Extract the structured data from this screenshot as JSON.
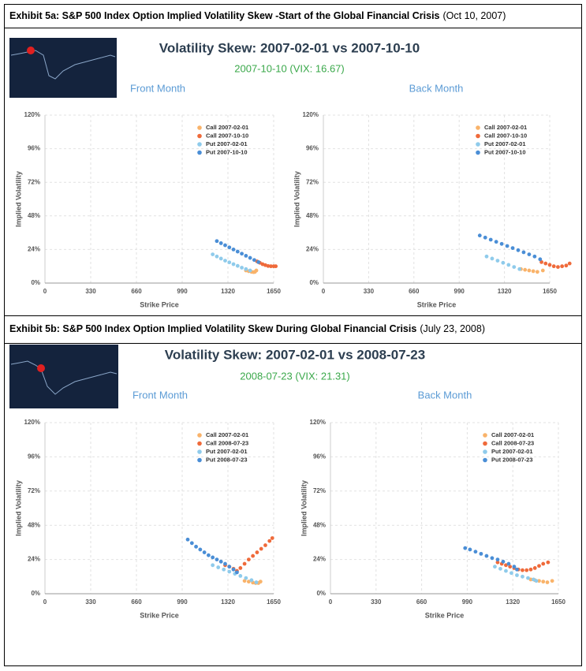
{
  "exhibits": [
    {
      "title": "Exhibit 5a: S&P 500 Index Option Implied Volatility Skew -Start of the Global Financial Crisis",
      "date": "(Oct 10, 2007)",
      "heading": "Volatility Skew: 2007-02-01 vs 2007-10-10",
      "subheading": "2007-10-10 (VIX: 16.67)"
    },
    {
      "title": "Exhibit 5b: S&P 500 Index Option Implied Volatility Skew During Global Financial Crisis",
      "date": "(July 23, 2008)",
      "heading": "Volatility Skew: 2007-02-01 vs 2008-07-23",
      "subheading": "2008-07-23 (VIX: 21.31)"
    }
  ],
  "chart_data": [
    {
      "type": "scatter",
      "title": "Front Month",
      "x_label": "Strike Price",
      "y_label": "Implied Volatility",
      "xlim": [
        0,
        1650
      ],
      "xticks": [
        0,
        330,
        660,
        990,
        1320,
        1650
      ],
      "ylim": [
        0,
        120
      ],
      "yticks": [
        {
          "value": 0,
          "label": "0%"
        },
        {
          "value": 24,
          "label": "24%"
        },
        {
          "value": 48,
          "label": "48%"
        },
        {
          "value": 72,
          "label": "72%"
        },
        {
          "value": 96,
          "label": "96%"
        },
        {
          "value": 120,
          "label": "120%"
        }
      ],
      "grid": true,
      "series": [
        {
          "name": "Call 2007-02-01",
          "color": "#f9b36a",
          "x": [
            1450,
            1470,
            1490,
            1505,
            1515,
            1525
          ],
          "values": [
            9,
            8.5,
            8,
            7.8,
            8,
            9
          ]
        },
        {
          "name": "Call 2007-10-10",
          "color": "#ef6a3a",
          "x": [
            1530,
            1550,
            1570,
            1590,
            1610,
            1630,
            1650,
            1665
          ],
          "values": [
            15.5,
            14.5,
            13.5,
            12.8,
            12.2,
            12,
            12,
            12
          ]
        },
        {
          "name": "Put 2007-02-01",
          "color": "#8fcbeb",
          "x": [
            1210,
            1240,
            1270,
            1300,
            1330,
            1360,
            1390,
            1420,
            1450,
            1480
          ],
          "values": [
            20.5,
            19,
            17.5,
            16,
            14.8,
            13.5,
            12.3,
            11,
            10,
            9
          ]
        },
        {
          "name": "Put 2007-10-10",
          "color": "#4a8ed6",
          "x": [
            1240,
            1270,
            1300,
            1330,
            1360,
            1390,
            1420,
            1450,
            1480,
            1510,
            1540
          ],
          "values": [
            30,
            28.5,
            27,
            25.5,
            24,
            22.5,
            21,
            19.5,
            18,
            16.5,
            15
          ]
        }
      ]
    },
    {
      "type": "scatter",
      "title": "Back Month",
      "x_label": "Strike Price",
      "y_label": "Implied Volatility",
      "xlim": [
        0,
        1650
      ],
      "xticks": [
        0,
        330,
        660,
        990,
        1320,
        1650
      ],
      "ylim": [
        0,
        120
      ],
      "yticks": [
        {
          "value": 0,
          "label": "0%"
        },
        {
          "value": 24,
          "label": "24%"
        },
        {
          "value": 48,
          "label": "48%"
        },
        {
          "value": 72,
          "label": "72%"
        },
        {
          "value": 96,
          "label": "96%"
        },
        {
          "value": 120,
          "label": "120%"
        }
      ],
      "grid": true,
      "series": [
        {
          "name": "Call 2007-02-01",
          "color": "#f9b36a",
          "x": [
            1440,
            1470,
            1500,
            1530,
            1560,
            1600
          ],
          "values": [
            10,
            9.5,
            9,
            8.5,
            8,
            9
          ]
        },
        {
          "name": "Call 2007-10-10",
          "color": "#ef6a3a",
          "x": [
            1590,
            1620,
            1650,
            1680,
            1710,
            1740,
            1770,
            1795
          ],
          "values": [
            15,
            14,
            13,
            12,
            11.5,
            12,
            12.5,
            14
          ]
        },
        {
          "name": "Put 2007-02-01",
          "color": "#8fcbeb",
          "x": [
            1190,
            1230,
            1270,
            1310,
            1350,
            1390,
            1430
          ],
          "values": [
            19,
            17.5,
            16,
            14.5,
            13,
            11.5,
            10
          ]
        },
        {
          "name": "Put 2007-10-10",
          "color": "#4a8ed6",
          "x": [
            1140,
            1180,
            1220,
            1260,
            1300,
            1340,
            1380,
            1420,
            1460,
            1500,
            1540,
            1580
          ],
          "values": [
            34,
            32.5,
            31,
            29.5,
            28,
            26.5,
            25,
            23.5,
            22,
            20.5,
            19,
            17
          ]
        }
      ]
    },
    {
      "type": "scatter",
      "title": "Front Month",
      "x_label": "Strike Price",
      "y_label": "Implied Volatility",
      "xlim": [
        0,
        1650
      ],
      "xticks": [
        0,
        330,
        660,
        990,
        1320,
        1650
      ],
      "ylim": [
        0,
        120
      ],
      "yticks": [
        {
          "value": 0,
          "label": "0%"
        },
        {
          "value": 24,
          "label": "24%"
        },
        {
          "value": 48,
          "label": "48%"
        },
        {
          "value": 72,
          "label": "72%"
        },
        {
          "value": 96,
          "label": "96%"
        },
        {
          "value": 120,
          "label": "120%"
        }
      ],
      "grid": true,
      "series": [
        {
          "name": "Call 2007-02-01",
          "color": "#f9b36a",
          "x": [
            1440,
            1470,
            1500,
            1520,
            1540,
            1555
          ],
          "values": [
            9,
            8.5,
            7.8,
            7.5,
            7.5,
            8.5
          ]
        },
        {
          "name": "Call 2008-07-23",
          "color": "#ef6a3a",
          "x": [
            1300,
            1330,
            1360,
            1385,
            1410,
            1440,
            1470,
            1500,
            1530,
            1560,
            1590,
            1620,
            1640
          ],
          "values": [
            20,
            19,
            17.5,
            16,
            18,
            21,
            24,
            26.5,
            29,
            31.5,
            34,
            37,
            39
          ]
        },
        {
          "name": "Put 2007-02-01",
          "color": "#8fcbeb",
          "x": [
            1210,
            1250,
            1290,
            1330,
            1370,
            1410,
            1450,
            1490,
            1525
          ],
          "values": [
            20,
            18.5,
            17,
            15.5,
            14,
            12.5,
            11,
            9.5,
            8
          ]
        },
        {
          "name": "Put 2008-07-23",
          "color": "#4a8ed6",
          "x": [
            1030,
            1060,
            1090,
            1120,
            1150,
            1180,
            1210,
            1240,
            1270,
            1300,
            1330,
            1360,
            1385
          ],
          "values": [
            38,
            35.5,
            33,
            31,
            29,
            27,
            25.5,
            24,
            22.5,
            21,
            19,
            17,
            15
          ]
        }
      ]
    },
    {
      "type": "scatter",
      "title": "Back Month",
      "x_label": "Strike Price",
      "y_label": "Implied Volatility",
      "xlim": [
        0,
        1650
      ],
      "xticks": [
        0,
        330,
        660,
        990,
        1320,
        1650
      ],
      "ylim": [
        0,
        120
      ],
      "yticks": [
        {
          "value": 0,
          "label": "0%"
        },
        {
          "value": 24,
          "label": "24%"
        },
        {
          "value": 48,
          "label": "48%"
        },
        {
          "value": 72,
          "label": "72%"
        },
        {
          "value": 96,
          "label": "96%"
        },
        {
          "value": 120,
          "label": "120%"
        }
      ],
      "grid": true,
      "series": [
        {
          "name": "Call 2007-02-01",
          "color": "#f9b36a",
          "x": [
            1450,
            1480,
            1510,
            1540,
            1570,
            1605
          ],
          "values": [
            10,
            9.5,
            9,
            8.5,
            8,
            9
          ]
        },
        {
          "name": "Call 2008-07-23",
          "color": "#ef6a3a",
          "x": [
            1210,
            1240,
            1270,
            1300,
            1330,
            1360,
            1390,
            1420,
            1450,
            1480,
            1510,
            1540,
            1575
          ],
          "values": [
            22,
            21,
            20,
            19,
            18,
            17,
            16.5,
            16.5,
            17,
            18,
            19.5,
            21,
            22
          ]
        },
        {
          "name": "Put 2007-02-01",
          "color": "#8fcbeb",
          "x": [
            1190,
            1230,
            1270,
            1310,
            1350,
            1390,
            1430,
            1470,
            1490
          ],
          "values": [
            19,
            17.5,
            16,
            14.5,
            13,
            12,
            11,
            10,
            9
          ]
        },
        {
          "name": "Put 2008-07-23",
          "color": "#4a8ed6",
          "x": [
            975,
            1010,
            1050,
            1090,
            1130,
            1170,
            1210,
            1250,
            1290,
            1330,
            1350
          ],
          "values": [
            32,
            31,
            29.5,
            28,
            26.5,
            25,
            24,
            22.5,
            21,
            19,
            17
          ]
        }
      ]
    }
  ]
}
